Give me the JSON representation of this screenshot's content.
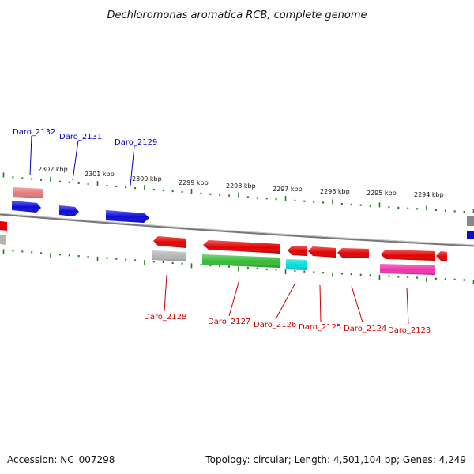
{
  "title": "Dechloromonas aromatica RCB, complete genome",
  "footer": {
    "accession": "Accession: NC_007298",
    "summary": "Topology: circular; Length: 4,501,104 bp; Genes: 4,249"
  },
  "colors": {
    "forward_label": "#0000bb",
    "reverse_label": "#cc0000",
    "tick": "#1a7a1a",
    "backbone": "#777777",
    "blue_gene": "#0b0bd8",
    "red_gene": "#e30000",
    "light_red_gene": "#e87a7a",
    "grey_gene": "#b4b4b4",
    "green_gene": "#33bb33",
    "cyan_gene": "#00dddd",
    "pink_gene": "#ee33aa"
  },
  "ruler_labels": [
    "2302 kbp",
    "2301 kbp",
    "2300 kbp",
    "2299 kbp",
    "2298 kbp",
    "2297 kbp",
    "2296 kbp",
    "2295 kbp",
    "2294 kbp"
  ],
  "forward_genes": [
    "Daro_2132",
    "Daro_2131",
    "Daro_2129"
  ],
  "reverse_genes": [
    "Daro_2128",
    "Daro_2127",
    "Daro_2126",
    "Daro_2125",
    "Daro_2124",
    "Daro_2123"
  ]
}
